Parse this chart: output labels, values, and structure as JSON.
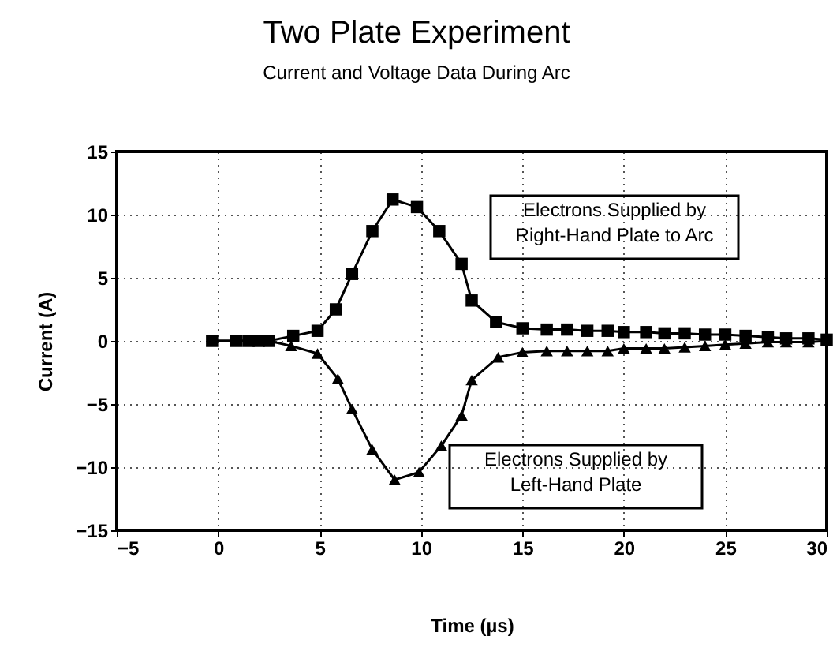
{
  "chart_data": {
    "type": "line",
    "title": "Two Plate Experiment",
    "subtitle": "Current and Voltage Data During Arc",
    "xlabel": "Time (µs)",
    "ylabel": "Current (A)",
    "xlim": [
      -5,
      30
    ],
    "xticks": [
      -5,
      0,
      5,
      10,
      15,
      20,
      25,
      30
    ],
    "ylim": [
      -15,
      15
    ],
    "yticks": [
      -15,
      -10,
      -5,
      0,
      5,
      10,
      15
    ],
    "grid": true,
    "legend": false,
    "line_style": "solid",
    "series": [
      {
        "name": "Electrons Supplied by\nRight-Hand Plate to Arc",
        "color": "#000000",
        "marker": "square",
        "x": [
          -0.3,
          0.9,
          1.5,
          2.0,
          2.5,
          3.7,
          4.9,
          5.8,
          6.6,
          7.6,
          8.6,
          9.8,
          10.9,
          12.0,
          12.5,
          13.7,
          15.0,
          16.2,
          17.2,
          18.2,
          19.2,
          20.0,
          21.1,
          22.0,
          23.0,
          24.0,
          25.0,
          26.0,
          27.1,
          28.0,
          29.1,
          30.0
        ],
        "values": [
          0,
          0,
          0,
          0,
          0,
          0.4,
          0.8,
          2.5,
          5.3,
          8.7,
          11.2,
          10.6,
          8.7,
          6.1,
          3.2,
          1.5,
          1.0,
          0.9,
          0.9,
          0.8,
          0.8,
          0.7,
          0.7,
          0.6,
          0.6,
          0.5,
          0.5,
          0.4,
          0.3,
          0.2,
          0.2,
          0.1
        ]
      },
      {
        "name": "Electrons Supplied by\nLeft-Hand Plate",
        "color": "#000000",
        "marker": "triangle",
        "x": [
          -0.3,
          0.9,
          1.5,
          2.0,
          2.5,
          3.6,
          4.9,
          5.9,
          6.6,
          7.6,
          8.7,
          9.9,
          11.0,
          12.0,
          12.5,
          13.8,
          15.0,
          16.2,
          17.2,
          18.2,
          19.2,
          20.0,
          21.1,
          22.0,
          23.0,
          24.0,
          25.0,
          26.0,
          27.1,
          28.0,
          29.1,
          30.0
        ],
        "values": [
          0,
          0,
          0,
          0,
          0,
          -0.4,
          -1.0,
          -3.0,
          -5.4,
          -8.6,
          -11.0,
          -10.4,
          -8.3,
          -5.9,
          -3.1,
          -1.3,
          -0.9,
          -0.8,
          -0.8,
          -0.8,
          -0.8,
          -0.6,
          -0.6,
          -0.6,
          -0.5,
          -0.4,
          -0.3,
          -0.2,
          -0.1,
          -0.1,
          -0.1,
          0
        ]
      }
    ]
  }
}
